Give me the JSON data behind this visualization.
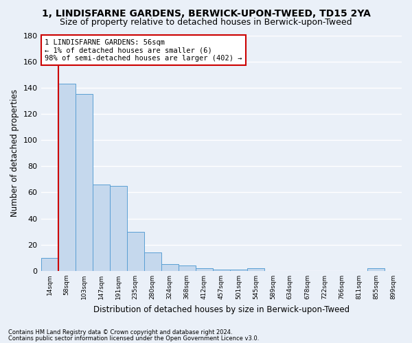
{
  "title": "1, LINDISFARNE GARDENS, BERWICK-UPON-TWEED, TD15 2YA",
  "subtitle": "Size of property relative to detached houses in Berwick-upon-Tweed",
  "xlabel": "Distribution of detached houses by size in Berwick-upon-Tweed",
  "ylabel": "Number of detached properties",
  "bar_color": "#c5d8ed",
  "bar_edge_color": "#5a9fd4",
  "categories": [
    "14sqm",
    "58sqm",
    "103sqm",
    "147sqm",
    "191sqm",
    "235sqm",
    "280sqm",
    "324sqm",
    "368sqm",
    "412sqm",
    "457sqm",
    "501sqm",
    "545sqm",
    "589sqm",
    "634sqm",
    "678sqm",
    "722sqm",
    "766sqm",
    "811sqm",
    "855sqm",
    "899sqm"
  ],
  "values": [
    10,
    143,
    135,
    66,
    65,
    30,
    14,
    5,
    4,
    2,
    1,
    1,
    2,
    0,
    0,
    0,
    0,
    0,
    0,
    2,
    0
  ],
  "ylim": [
    0,
    180
  ],
  "yticks": [
    0,
    20,
    40,
    60,
    80,
    100,
    120,
    140,
    160,
    180
  ],
  "annotation_text": "1 LINDISFARNE GARDENS: 56sqm\n← 1% of detached houses are smaller (6)\n98% of semi-detached houses are larger (402) →",
  "annotation_box_color": "#ffffff",
  "annotation_box_edge_color": "#cc0000",
  "footer_line1": "Contains HM Land Registry data © Crown copyright and database right 2024.",
  "footer_line2": "Contains public sector information licensed under the Open Government Licence v3.0.",
  "background_color": "#eaf0f8",
  "grid_color": "#ffffff",
  "title_fontsize": 10,
  "subtitle_fontsize": 9,
  "vline_color": "#cc0000",
  "vline_x": 0.5
}
